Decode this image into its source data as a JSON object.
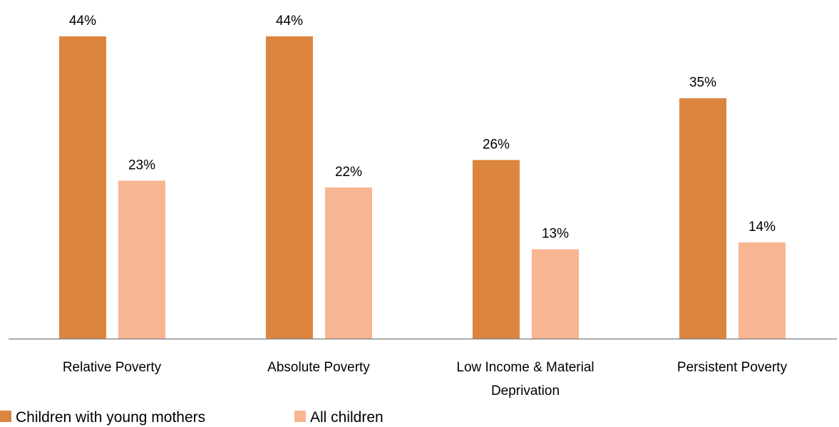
{
  "chart_data": {
    "type": "bar",
    "categories": [
      [
        "Relative Poverty"
      ],
      [
        "Absolute Poverty"
      ],
      [
        "Low Income & Material",
        "Deprivation"
      ],
      [
        "Persistent Poverty"
      ]
    ],
    "series": [
      {
        "name": "Children with young mothers",
        "color": "#DC853F",
        "values": [
          44,
          44,
          26,
          35
        ],
        "labels": [
          "44%",
          "44%",
          "26%",
          "35%"
        ]
      },
      {
        "name": "All children",
        "color": "#F8B591",
        "values": [
          23,
          22,
          13,
          14
        ],
        "labels": [
          "23%",
          "22%",
          "13%",
          "14%"
        ]
      }
    ],
    "ylim": [
      0,
      44
    ],
    "grid": false,
    "legend": "bottom-left",
    "axis_color": "#8C8C8C"
  }
}
